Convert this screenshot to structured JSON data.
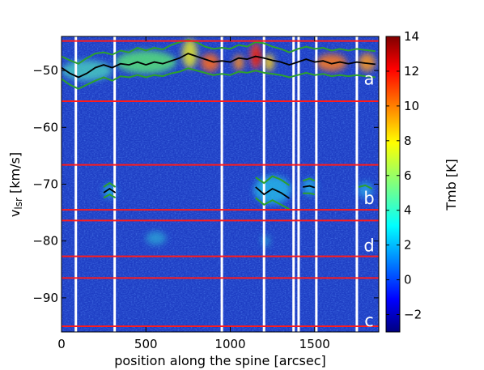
{
  "chart_data": {
    "type": "heatmap",
    "title": "",
    "xlabel": "position along the spine [arcsec]",
    "ylabel_main": "v",
    "ylabel_sub": "lsr",
    "ylabel_unit": " [km/s]",
    "xlim": [
      0,
      1880
    ],
    "ylim": [
      -96,
      -44
    ],
    "x_ticks": [
      0,
      500,
      1000,
      1500
    ],
    "y_ticks": [
      -50,
      -60,
      -70,
      -80,
      -90
    ],
    "colorbar": {
      "label": "Tmb [K]",
      "range": [
        -3,
        14
      ],
      "ticks": [
        -2,
        0,
        2,
        4,
        6,
        8,
        10,
        12,
        14
      ],
      "colormap": "jet"
    },
    "background_color": "#1e3ec4",
    "red_lines_velocity": [
      -44.8,
      -55.4,
      -66.6,
      -74.5,
      -76.4,
      -82.7,
      -86.5,
      -95.0
    ],
    "white_lines_position": [
      85,
      315,
      950,
      1200,
      1375,
      1405,
      1510,
      1750
    ],
    "region_labels": [
      {
        "text": "a",
        "v": -51.5
      },
      {
        "text": "b",
        "v": -72.5
      },
      {
        "text": "d",
        "v": -80.8
      },
      {
        "text": "c",
        "v": -94.0
      }
    ],
    "series": [
      {
        "color": "#000000",
        "points": [
          [
            0,
            -49.5
          ],
          [
            50,
            -50.5
          ],
          [
            100,
            -51.2
          ],
          [
            150,
            -50.5
          ],
          [
            200,
            -49.5
          ],
          [
            250,
            -49.0
          ],
          [
            300,
            -49.5
          ],
          [
            350,
            -48.8
          ],
          [
            400,
            -49.0
          ],
          [
            450,
            -48.5
          ],
          [
            500,
            -49.0
          ],
          [
            550,
            -48.5
          ],
          [
            600,
            -48.8
          ],
          [
            650,
            -48.3
          ],
          [
            700,
            -47.8
          ],
          [
            750,
            -47.0
          ],
          [
            800,
            -47.5
          ],
          [
            850,
            -48.0
          ],
          [
            900,
            -48.5
          ],
          [
            950,
            -48.3
          ],
          [
            1000,
            -48.5
          ],
          [
            1050,
            -47.8
          ],
          [
            1100,
            -48.0
          ],
          [
            1150,
            -47.5
          ],
          [
            1200,
            -47.8
          ],
          [
            1250,
            -48.2
          ],
          [
            1300,
            -48.5
          ],
          [
            1350,
            -49.0
          ],
          [
            1400,
            -48.5
          ],
          [
            1450,
            -48.0
          ],
          [
            1500,
            -48.5
          ],
          [
            1550,
            -48.3
          ],
          [
            1600,
            -48.8
          ],
          [
            1650,
            -48.5
          ],
          [
            1700,
            -48.8
          ],
          [
            1750,
            -48.5
          ],
          [
            1800,
            -48.7
          ],
          [
            1860,
            -48.9
          ]
        ]
      },
      {
        "color": "#000000",
        "points": [
          [
            1150,
            -70.5
          ],
          [
            1200,
            -71.8
          ],
          [
            1250,
            -70.8
          ],
          [
            1300,
            -71.5
          ],
          [
            1350,
            -72.5
          ]
        ]
      },
      {
        "color": "#000000",
        "points": [
          [
            1430,
            -70.5
          ],
          [
            1470,
            -70.3
          ],
          [
            1500,
            -70.6
          ]
        ]
      },
      {
        "color": "#000000",
        "points": [
          [
            250,
            -71.5
          ],
          [
            285,
            -70.8
          ],
          [
            320,
            -71.5
          ]
        ]
      }
    ],
    "contours": [
      {
        "color": "#2ca02c",
        "points": [
          [
            0,
            -47.5
          ],
          [
            50,
            -48.2
          ],
          [
            100,
            -48.8
          ],
          [
            150,
            -47.8
          ],
          [
            200,
            -47.0
          ],
          [
            250,
            -46.8
          ],
          [
            300,
            -47.2
          ],
          [
            350,
            -46.5
          ],
          [
            400,
            -46.8
          ],
          [
            450,
            -46.0
          ],
          [
            500,
            -46.5
          ],
          [
            550,
            -46.0
          ],
          [
            600,
            -46.3
          ],
          [
            650,
            -45.5
          ],
          [
            700,
            -45.0
          ],
          [
            750,
            -44.6
          ],
          [
            800,
            -45.0
          ],
          [
            850,
            -45.8
          ],
          [
            900,
            -46.2
          ],
          [
            950,
            -46.0
          ],
          [
            1000,
            -46.2
          ],
          [
            1050,
            -45.5
          ],
          [
            1100,
            -45.8
          ],
          [
            1150,
            -45.0
          ],
          [
            1200,
            -45.2
          ],
          [
            1250,
            -45.8
          ],
          [
            1300,
            -46.2
          ],
          [
            1350,
            -46.8
          ],
          [
            1400,
            -46.2
          ],
          [
            1450,
            -45.8
          ],
          [
            1500,
            -46.2
          ],
          [
            1550,
            -46.0
          ],
          [
            1600,
            -46.5
          ],
          [
            1650,
            -46.2
          ],
          [
            1700,
            -46.5
          ],
          [
            1750,
            -46.2
          ],
          [
            1800,
            -46.4
          ],
          [
            1860,
            -46.6
          ]
        ]
      },
      {
        "color": "#2ca02c",
        "points": [
          [
            0,
            -51.5
          ],
          [
            50,
            -52.5
          ],
          [
            100,
            -53.2
          ],
          [
            150,
            -52.5
          ],
          [
            200,
            -51.8
          ],
          [
            250,
            -51.2
          ],
          [
            300,
            -51.8
          ],
          [
            350,
            -51.0
          ],
          [
            400,
            -51.2
          ],
          [
            450,
            -50.8
          ],
          [
            500,
            -51.2
          ],
          [
            550,
            -50.8
          ],
          [
            600,
            -51.0
          ],
          [
            650,
            -50.5
          ],
          [
            700,
            -50.2
          ],
          [
            750,
            -49.6
          ],
          [
            800,
            -50.0
          ],
          [
            850,
            -50.4
          ],
          [
            900,
            -50.8
          ],
          [
            950,
            -50.6
          ],
          [
            1000,
            -50.8
          ],
          [
            1050,
            -50.2
          ],
          [
            1100,
            -50.4
          ],
          [
            1150,
            -50.0
          ],
          [
            1200,
            -50.4
          ],
          [
            1250,
            -50.6
          ],
          [
            1300,
            -50.8
          ],
          [
            1350,
            -51.2
          ],
          [
            1400,
            -50.8
          ],
          [
            1450,
            -50.4
          ],
          [
            1500,
            -50.8
          ],
          [
            1550,
            -50.6
          ],
          [
            1600,
            -51.0
          ],
          [
            1650,
            -50.8
          ],
          [
            1700,
            -51.0
          ],
          [
            1750,
            -50.8
          ],
          [
            1800,
            -51.0
          ],
          [
            1860,
            -51.2
          ]
        ]
      },
      {
        "color": "#2ca02c",
        "points": [
          [
            1150,
            -68.8
          ],
          [
            1200,
            -69.8
          ],
          [
            1250,
            -68.6
          ],
          [
            1300,
            -69.2
          ],
          [
            1350,
            -70.2
          ]
        ]
      },
      {
        "color": "#2ca02c",
        "points": [
          [
            1150,
            -72.4
          ],
          [
            1200,
            -73.6
          ],
          [
            1250,
            -72.8
          ],
          [
            1300,
            -73.6
          ],
          [
            1350,
            -74.4
          ]
        ]
      },
      {
        "color": "#2ca02c",
        "points": [
          [
            1430,
            -69.4
          ],
          [
            1470,
            -69.0
          ],
          [
            1500,
            -69.4
          ]
        ]
      },
      {
        "color": "#2ca02c",
        "points": [
          [
            1430,
            -71.6
          ],
          [
            1470,
            -71.6
          ],
          [
            1500,
            -71.8
          ]
        ]
      },
      {
        "color": "#2ca02c",
        "points": [
          [
            250,
            -70.5
          ],
          [
            285,
            -69.8
          ],
          [
            320,
            -70.5
          ]
        ]
      },
      {
        "color": "#2ca02c",
        "points": [
          [
            250,
            -72.4
          ],
          [
            285,
            -71.8
          ],
          [
            320,
            -72.4
          ]
        ]
      },
      {
        "color": "#2ca02c",
        "points": [
          [
            1760,
            -70.5
          ],
          [
            1800,
            -70.2
          ],
          [
            1840,
            -70.8
          ]
        ]
      }
    ],
    "hot_spots": [
      {
        "x": 760,
        "v": -47.0,
        "rx": 45,
        "rv": 2.6,
        "color": "#e6e62a"
      },
      {
        "x": 880,
        "v": -48.6,
        "rx": 55,
        "rv": 1.6,
        "color": "#ff6a1a"
      },
      {
        "x": 1050,
        "v": -48.6,
        "rx": 30,
        "rv": 1.4,
        "color": "#ff8c1a"
      },
      {
        "x": 1150,
        "v": -47.4,
        "rx": 32,
        "rv": 2.4,
        "color": "#ff3d1a"
      },
      {
        "x": 1160,
        "v": -47.6,
        "rx": 14,
        "rv": 1.2,
        "color": "#cc1010"
      },
      {
        "x": 1230,
        "v": -48.6,
        "rx": 30,
        "rv": 1.5,
        "color": "#ffd21a"
      },
      {
        "x": 1600,
        "v": -48.6,
        "rx": 90,
        "rv": 1.5,
        "color": "#ff7a1a"
      },
      {
        "x": 1810,
        "v": -48.6,
        "rx": 50,
        "rv": 1.6,
        "color": "#ff9a1a"
      },
      {
        "x": 500,
        "v": -48.5,
        "rx": 180,
        "rv": 2.0,
        "color": "#55e07a"
      },
      {
        "x": 150,
        "v": -50.0,
        "rx": 150,
        "rv": 1.8,
        "color": "#46c8c0"
      },
      {
        "x": 1250,
        "v": -71.0,
        "rx": 110,
        "rv": 2.5,
        "color": "#28b4e6"
      },
      {
        "x": 1470,
        "v": -70.5,
        "rx": 40,
        "rv": 1.4,
        "color": "#28b4e6"
      },
      {
        "x": 285,
        "v": -71.2,
        "rx": 35,
        "rv": 1.2,
        "color": "#28b4e6"
      },
      {
        "x": 1800,
        "v": -71.0,
        "rx": 45,
        "rv": 1.4,
        "color": "#2aa0e6"
      },
      {
        "x": 560,
        "v": -79.5,
        "rx": 60,
        "rv": 1.2,
        "color": "#2a9cd6"
      },
      {
        "x": 1210,
        "v": -80.0,
        "rx": 25,
        "rv": 1.0,
        "color": "#2a9cd6"
      }
    ]
  }
}
